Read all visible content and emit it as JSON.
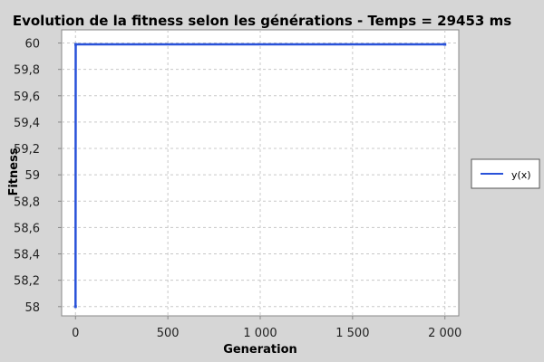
{
  "chart_data": {
    "type": "line",
    "title": "Evolution de la fitness selon les générations - Temps = 29453 ms",
    "xlabel": "Generation",
    "ylabel": "Fitness",
    "xlim": [
      -75,
      2075
    ],
    "ylim": [
      57.93,
      60.1
    ],
    "x_ticks": [
      {
        "value": 0,
        "label": "0"
      },
      {
        "value": 500,
        "label": "500"
      },
      {
        "value": 1000,
        "label": "1 000"
      },
      {
        "value": 1500,
        "label": "1 500"
      },
      {
        "value": 2000,
        "label": "2 000"
      }
    ],
    "y_ticks": [
      {
        "value": 58,
        "label": "58"
      },
      {
        "value": 58.2,
        "label": "58,2"
      },
      {
        "value": 58.4,
        "label": "58,4"
      },
      {
        "value": 58.6,
        "label": "58,6"
      },
      {
        "value": 58.8,
        "label": "58,8"
      },
      {
        "value": 59,
        "label": "59"
      },
      {
        "value": 59.2,
        "label": "59,2"
      },
      {
        "value": 59.4,
        "label": "59,4"
      },
      {
        "value": 59.6,
        "label": "59,6"
      },
      {
        "value": 59.8,
        "label": "59,8"
      },
      {
        "value": 60,
        "label": "60"
      }
    ],
    "grid": true,
    "legend_position": "right",
    "series": [
      {
        "name": "y(x)",
        "color": "#2952d9",
        "x": [
          0,
          1,
          2000
        ],
        "y": [
          58,
          59.99,
          59.99
        ]
      }
    ],
    "colors": {
      "background": "#d6d6d6",
      "plot_background": "#ffffff",
      "grid": "#c8c8c8"
    }
  }
}
